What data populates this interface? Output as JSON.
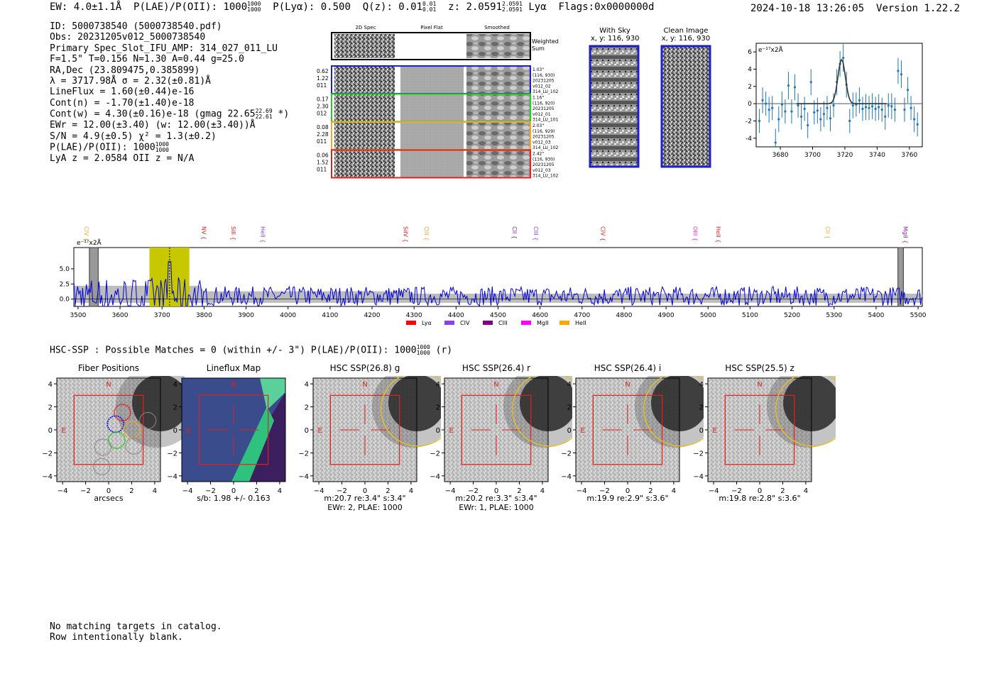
{
  "header": {
    "ew": "EW: 4.0±1.1Å",
    "plae": "P(LAE)/P(OII): 1000",
    "plae_hi": "1000",
    "plae_lo": "1000",
    "plya": "P(Lyα): 0.500",
    "qz": "Q(z): 0.01",
    "qz_hi": "0.01",
    "qz_lo": "0.01",
    "z": "z: 2.0591",
    "z_hi": "2.0591",
    "z_lo": "2.0591",
    "z_line": "Lyα",
    "flags": "Flags:0x0000000d",
    "timestamp": "2024-10-18 13:26:05",
    "version": "Version 1.22.2"
  },
  "info": {
    "id": "ID: 5000738540 (5000738540.pdf)",
    "obs": "Obs: 20231205v012_5000738540",
    "primary": "Primary Spec_Slot_IFU_AMP: 314_027_011_LU",
    "params": "F=1.5\"  T=0.156  N=1.30  A=0.44  g=25.0",
    "radec": "RA,Dec (23.809475,0.385899)",
    "lambda": "λ = 3717.98Å  σ = 2.32(±0.81)Å",
    "lineflux": "LineFlux = 1.60(±0.44)e-16",
    "contn": "Cont(n) = -1.70(±1.40)e-18",
    "contw": "Cont(w) = 4.30(±0.16)e-18 (gmag 22.65",
    "contw_hi": "22.69",
    "contw_lo": "22.61",
    "contw_end": "*)",
    "ewr": "EWr = 12.00(±3.40) (w: 12.00(±3.40))Å",
    "sn": "S/N = 4.9(±0.5)  χ² = 1.3(±0.2)",
    "plae": "P(LAE)/P(OII): 1000",
    "plae_hi": "1000",
    "plae_lo": "1000",
    "lyaz": "LyA z = 2.0584  OII z = N/A"
  },
  "cutouts": {
    "col_2d": "2D Spec",
    "col_flat": "Pixel Flat",
    "col_smooth": "Smoothed",
    "weighted": "Weighted",
    "sum": "Sum",
    "rows": [
      {
        "left": [
          "0.62",
          "1.22",
          "011"
        ],
        "right": [
          "1.03\"",
          "(116, 930)",
          "20231205",
          "v012_02",
          "314_LU_102"
        ],
        "color": "#1f1fc8"
      },
      {
        "left": [
          "0.17",
          "2.30",
          "012"
        ],
        "right": [
          "1.16\"",
          "(116, 920)",
          "20231205",
          "v012_01",
          "314_LU_101"
        ],
        "color": "#22cc22"
      },
      {
        "left": [
          "0.08",
          "2.28",
          "011"
        ],
        "right": [
          "2.03\"",
          "(116, 929)",
          "20231205",
          "v012_03",
          "314_LU_102"
        ],
        "color": "#f5a623"
      },
      {
        "left": [
          "0.06",
          "1.52",
          "011"
        ],
        "right": [
          "2.42\"",
          "(116, 930)",
          "20231205",
          "v012_03",
          "314_LU_102"
        ],
        "color": "#e0201a"
      }
    ],
    "with_sky": "With Sky",
    "with_sky_xy": "x, y: 116, 930",
    "clean": "Clean Image",
    "clean_xy": "x, y: 116, 930"
  },
  "chart_data": [
    {
      "type": "scatter",
      "title": "",
      "ylabel_unit": "e⁻¹⁷x2Å",
      "xlim": [
        3665,
        3768
      ],
      "ylim": [
        -5,
        7
      ],
      "xticks": [
        3680,
        3700,
        3720,
        3740,
        3760
      ],
      "yticks": [
        -4,
        -2,
        0,
        2,
        4,
        6
      ],
      "x": [
        3667,
        3669,
        3671,
        3673,
        3675,
        3677,
        3679,
        3681,
        3683,
        3685,
        3687,
        3689,
        3691,
        3693,
        3695,
        3697,
        3699,
        3701,
        3703,
        3705,
        3707,
        3709,
        3711,
        3713,
        3715,
        3717,
        3719,
        3721,
        3723,
        3725,
        3727,
        3729,
        3731,
        3733,
        3735,
        3737,
        3739,
        3741,
        3743,
        3745,
        3747,
        3749,
        3751,
        3753,
        3755,
        3757,
        3759,
        3761,
        3763,
        3765
      ],
      "y": [
        -2.0,
        0.4,
        0.0,
        -0.7,
        -0.5,
        -4.5,
        -1.8,
        -0.1,
        -0.9,
        2.1,
        -0.9,
        1.9,
        -0.2,
        -1.5,
        -0.6,
        -2.5,
        2.5,
        -1.0,
        -0.8,
        -1.8,
        -1.2,
        -0.5,
        -1.7,
        -0.2,
        2.5,
        4.6,
        5.3,
        2.2,
        -2.0,
        -0.2,
        -0.1,
        0.4,
        -0.6,
        -0.4,
        -0.5,
        -0.3,
        -0.6,
        -0.4,
        -0.7,
        -1.5,
        -0.2,
        -0.3,
        -0.7,
        3.8,
        3.4,
        -0.7,
        1.6,
        -0.5,
        -1.8,
        -2.4
      ],
      "err": [
        1.4,
        1.5,
        1.4,
        1.5,
        1.4,
        1.6,
        1.5,
        1.5,
        1.4,
        1.6,
        1.4,
        1.5,
        1.4,
        1.5,
        1.4,
        1.5,
        1.5,
        1.4,
        1.5,
        1.4,
        1.5,
        1.4,
        1.5,
        1.4,
        1.5,
        1.5,
        1.6,
        1.5,
        1.4,
        1.5,
        1.4,
        1.5,
        1.4,
        1.5,
        1.4,
        1.5,
        1.4,
        1.5,
        1.4,
        1.5,
        1.4,
        1.5,
        1.4,
        1.5,
        1.6,
        1.4,
        1.5,
        1.4,
        1.5,
        1.4
      ],
      "fit": {
        "center": 3718,
        "sigma": 2.32,
        "amp": 5.1
      }
    },
    {
      "type": "line",
      "ylabel_unit": "e⁻¹⁷x2Å",
      "xlim": [
        3490,
        5510
      ],
      "ylim": [
        -1.2,
        8.5
      ],
      "xticks": [
        3500,
        3600,
        3700,
        3800,
        3900,
        4000,
        4100,
        4200,
        4300,
        4400,
        4500,
        4600,
        4700,
        4800,
        4900,
        5000,
        5100,
        5200,
        5300,
        5400,
        5500
      ],
      "yticks": [
        0.0,
        2.5,
        5.0
      ],
      "highlight": [
        3670,
        3765
      ],
      "line_marker": 3718,
      "masked": [
        [
          3527,
          3548
        ],
        [
          5452,
          5465
        ]
      ],
      "lines": [
        {
          "label": "CIV",
          "wave": 3510,
          "color": "#f5a623"
        },
        {
          "label": "NV",
          "wave": 3790,
          "color": "#e0201a"
        },
        {
          "label": "SiII",
          "wave": 3860,
          "color": "#e0201a"
        },
        {
          "label": "HeII",
          "wave": 3930,
          "color": "#8a3ff0"
        },
        {
          "label": "SiIV",
          "wave": 4270,
          "color": "#e0201a"
        },
        {
          "label": "CIII",
          "wave": 4320,
          "color": "#f5a623"
        },
        {
          "label": "CII",
          "wave": 4530,
          "color": "#8a1aa8"
        },
        {
          "label": "CIII",
          "wave": 4580,
          "color": "#8a3ff0"
        },
        {
          "label": "CIV",
          "wave": 4740,
          "color": "#e0201a"
        },
        {
          "label": "OIII",
          "wave": 4960,
          "color": "#ee22ee"
        },
        {
          "label": "HeII",
          "wave": 5015,
          "color": "#e0201a"
        },
        {
          "label": "CII",
          "wave": 5275,
          "color": "#f5a623"
        },
        {
          "label": "MgII",
          "wave": 5460,
          "color": "#8a1aa8"
        }
      ],
      "legend": [
        {
          "label": "Lyα",
          "color": "#ff0000"
        },
        {
          "label": "CIV",
          "color": "#8a3ff0"
        },
        {
          "label": "CIII",
          "color": "#800080"
        },
        {
          "label": "MgII",
          "color": "#ff00ff"
        },
        {
          "label": "HeII",
          "color": "#ffa500"
        }
      ]
    }
  ],
  "hsc": {
    "line": "HSC-SSP : Possible Matches = 0 (within +/- 3\")  P(LAE)/P(OII): 1000",
    "hi": "1000",
    "lo": "1000",
    "band": "(r)",
    "panels": [
      {
        "title": "Fiber Positions",
        "cap1": "arcsecs",
        "cap2": ""
      },
      {
        "title": "Lineflux Map",
        "cap1": "s/b: 1.98 +/- 0.163",
        "cap2": ""
      },
      {
        "title": "HSC SSP(26.8) g",
        "cap1": "m:20.7  re:3.4\"  s:3.4\"",
        "cap2": "EWr: 2, PLAE: 1000"
      },
      {
        "title": "HSC SSP(26.4) r",
        "cap1": "m:20.2  re:3.3\"  s:3.4\"",
        "cap2": "EWr: 1, PLAE: 1000"
      },
      {
        "title": "HSC SSP(26.4) i",
        "cap1": "m:19.9  re:2.9\"  s:3.6\"",
        "cap2": ""
      },
      {
        "title": "HSC SSP(25.5) z",
        "cap1": "m:19.8  re:2.8\"  s:3.6\"",
        "cap2": ""
      }
    ],
    "ticks": [
      "4",
      "2",
      "0",
      "−2",
      "−4"
    ],
    "xticks": [
      "−4",
      "−2",
      "0",
      "2",
      "4"
    ],
    "north": "N",
    "east": "E"
  },
  "footer": {
    "line1": "No matching targets in catalog.",
    "line2": "Row intentionally blank."
  }
}
